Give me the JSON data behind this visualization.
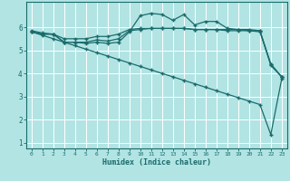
{
  "xlabel": "Humidex (Indice chaleur)",
  "background_color": "#b2e4e4",
  "grid_color": "#ffffff",
  "line_color": "#1a6b6b",
  "x": [
    0,
    1,
    2,
    3,
    4,
    5,
    6,
    7,
    8,
    9,
    10,
    11,
    12,
    13,
    14,
    15,
    16,
    17,
    18,
    19,
    20,
    21,
    22,
    23
  ],
  "line1": [
    5.8,
    5.7,
    5.7,
    5.35,
    5.35,
    5.3,
    5.35,
    5.3,
    5.35,
    5.8,
    6.5,
    6.6,
    6.55,
    6.3,
    6.55,
    6.1,
    6.25,
    6.25,
    5.95,
    5.9,
    5.85,
    5.8,
    4.4,
    3.85
  ],
  "line2": [
    5.8,
    5.7,
    5.7,
    5.35,
    5.35,
    5.35,
    5.45,
    5.4,
    5.5,
    5.85,
    5.9,
    5.95,
    5.95,
    5.95,
    5.95,
    5.9,
    5.9,
    5.9,
    5.85,
    5.85,
    5.85,
    5.85,
    4.35,
    3.85
  ],
  "line3": [
    5.85,
    5.75,
    5.7,
    5.5,
    5.5,
    5.5,
    5.6,
    5.6,
    5.7,
    5.9,
    5.95,
    5.95,
    5.95,
    5.95,
    5.95,
    5.9,
    5.9,
    5.9,
    5.9,
    5.9,
    5.9,
    5.85,
    4.4,
    3.85
  ],
  "line4_diag": [
    5.8,
    5.65,
    5.5,
    5.35,
    5.2,
    5.05,
    4.9,
    4.75,
    4.6,
    4.45,
    4.3,
    4.15,
    4.0,
    3.85,
    3.7,
    3.55,
    3.4,
    3.25,
    3.1,
    2.95,
    2.8,
    2.65,
    1.35,
    3.75
  ],
  "ylim": [
    0.75,
    7.1
  ],
  "xlim": [
    -0.5,
    23.5
  ],
  "yticks": [
    1,
    2,
    3,
    4,
    5,
    6
  ],
  "xticks": [
    0,
    1,
    2,
    3,
    4,
    5,
    6,
    7,
    8,
    9,
    10,
    11,
    12,
    13,
    14,
    15,
    16,
    17,
    18,
    19,
    20,
    21,
    22,
    23
  ]
}
